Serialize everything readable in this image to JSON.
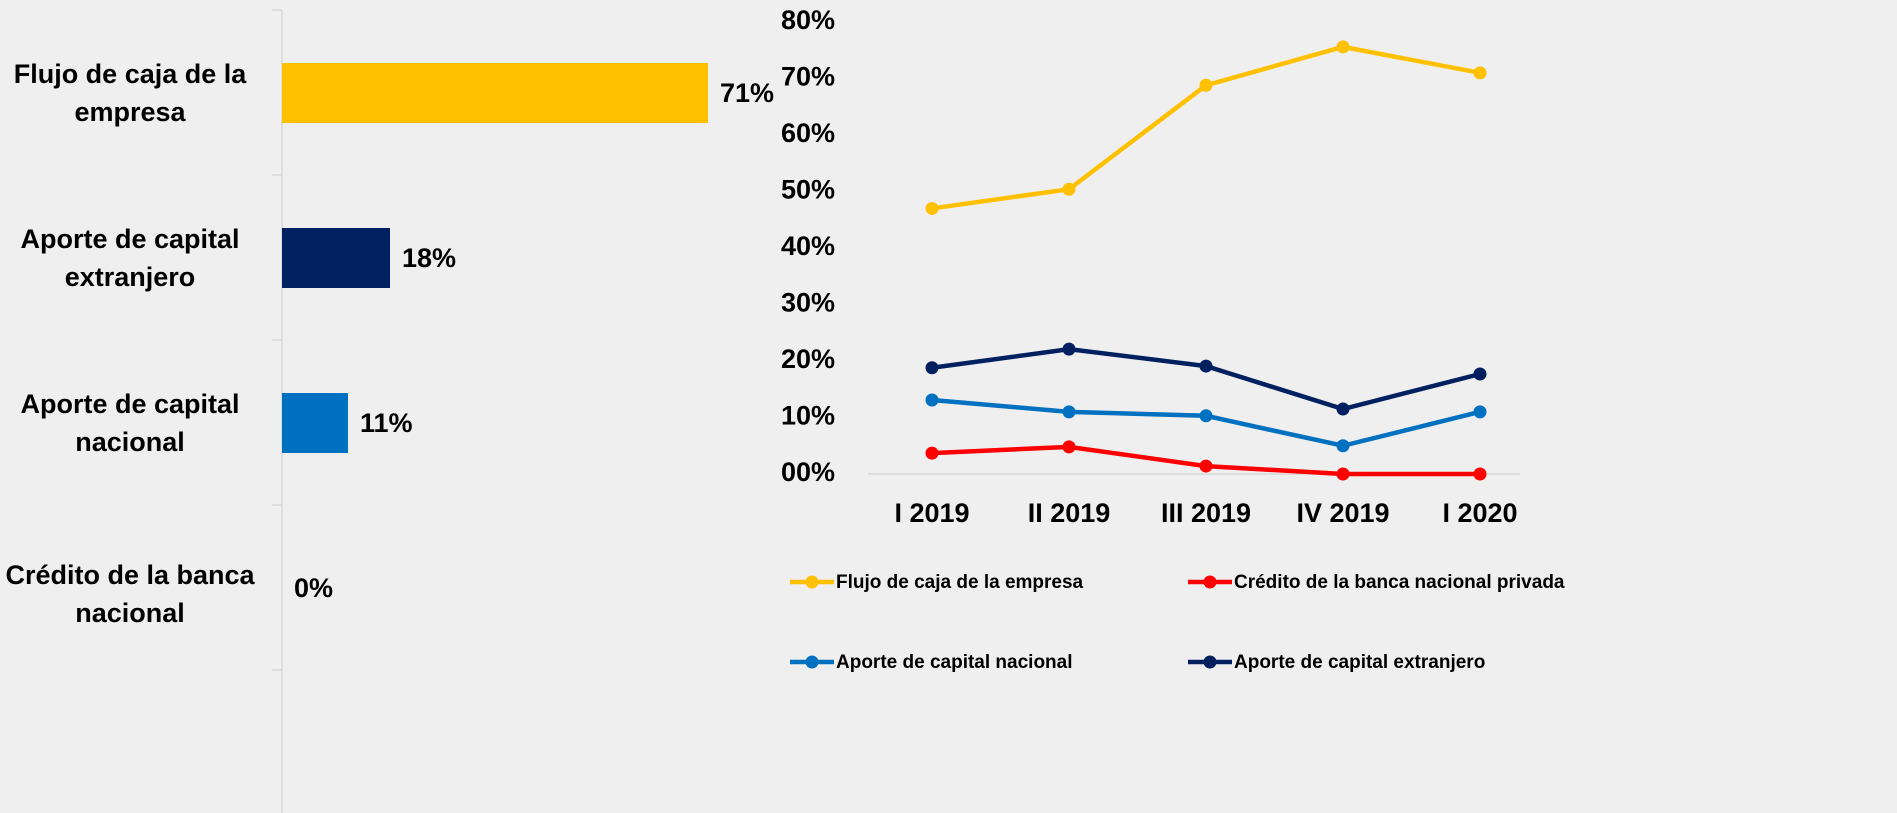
{
  "chart_data": [
    {
      "type": "hbar",
      "categories": [
        "Flujo de caja de la empresa",
        "Aporte de capital extranjero",
        "Aporte de capital nacional",
        "Crédito de la banca nacional"
      ],
      "values": [
        71,
        18,
        11,
        0
      ],
      "value_labels": [
        "71%",
        "18%",
        "11%",
        "0%"
      ],
      "colors": [
        "#ffc000",
        "#002060",
        "#0070c0",
        "#0070c0"
      ]
    },
    {
      "type": "line",
      "categories": [
        "I 2019",
        "II 2019",
        "III 2019",
        "IV 2019",
        "I 2020"
      ],
      "series": [
        {
          "name": "Flujo de caja de la empresa",
          "color": "#ffc000",
          "values": [
            47,
            50.4,
            68.8,
            75.6,
            71
          ]
        },
        {
          "name": "Crédito de la banca nacional privada",
          "color": "#ff0000",
          "values": [
            3.7,
            4.8,
            1.4,
            0,
            0
          ]
        },
        {
          "name": "Aporte de capital nacional",
          "color": "#0070c0",
          "values": [
            13.1,
            11,
            10.3,
            5,
            11
          ]
        },
        {
          "name": "Aporte de capital extranjero",
          "color": "#002060",
          "values": [
            18.8,
            22.1,
            19.1,
            11.5,
            17.7
          ]
        }
      ],
      "ylim": [
        0,
        80
      ],
      "yticks": [
        {
          "value": 0,
          "label": "00%"
        },
        {
          "value": 10,
          "label": "10%"
        },
        {
          "value": 20,
          "label": "20%"
        },
        {
          "value": 30,
          "label": "30%"
        },
        {
          "value": 40,
          "label": "40%"
        },
        {
          "value": 50,
          "label": "50%"
        },
        {
          "value": 60,
          "label": "60%"
        },
        {
          "value": 70,
          "label": "70%"
        },
        {
          "value": 80,
          "label": "80%"
        }
      ]
    }
  ]
}
